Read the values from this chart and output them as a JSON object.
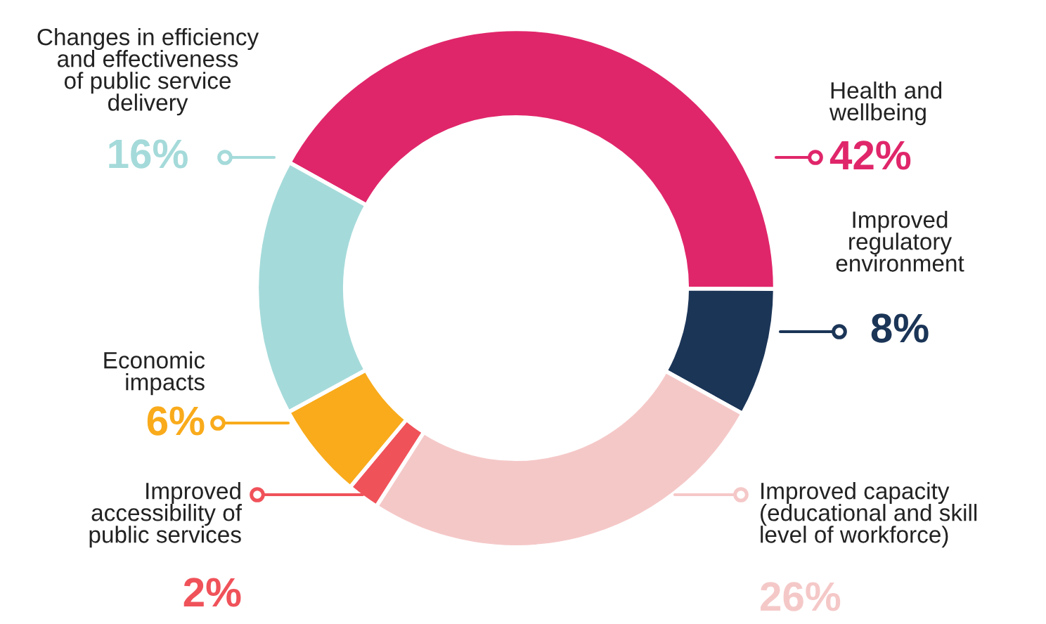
{
  "chart_data": {
    "type": "donut",
    "categories": [
      "Health and\nwellbeing",
      "Improved\nregulatory\nenvironment",
      "Improved capacity\n(educational and skill\nlevel of workforce)",
      "Improved\naccessibility of\npublic services",
      "Economic\nimpacts",
      "Changes in efficiency\nand effectiveness\nof public service\ndelivery"
    ],
    "values": [
      42,
      8,
      26,
      2,
      6,
      16
    ],
    "value_labels": [
      "42%",
      "8%",
      "26%",
      "2%",
      "6%",
      "16%"
    ],
    "colors": [
      "#e0266a",
      "#1b3557",
      "#f5c8c8",
      "#f0525a",
      "#f9ab1b",
      "#a5dada"
    ]
  }
}
